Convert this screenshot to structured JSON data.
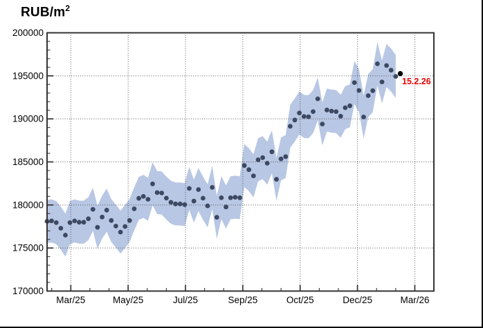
{
  "title": {
    "main": "RUB/m",
    "sup": "2"
  },
  "colors": {
    "marker": "#3d4962",
    "last_marker": "#000000",
    "band": "#b8c7e4",
    "annotation_red": "#ee0000",
    "frame": "#333333",
    "grid": "#555555",
    "text": "#000000",
    "background": "#ffffff"
  },
  "chart_data": {
    "type": "scatter",
    "title": "RUB/m2",
    "xlabel": "",
    "ylabel": "RUB/m2",
    "ylim": [
      170000,
      200000
    ],
    "y_ticks": [
      170000,
      175000,
      180000,
      185000,
      190000,
      195000,
      200000
    ],
    "y_tick_labels": [
      "170000",
      "175000",
      "180000",
      "185000",
      "190000",
      "195000",
      "200000"
    ],
    "y_minor_step": 1000,
    "x_tick_labels": [
      "Mar/25",
      "May/25",
      "Jul/25",
      "Sep/25",
      "Oct/25",
      "Dec/25",
      "Mar/26"
    ],
    "x_minor_per_major": 3,
    "grid": "dotted, both axes at major ticks",
    "legend": "none",
    "band": {
      "kind": "confidence",
      "halfwidth": 2500,
      "covers": "all points except final black point"
    },
    "series": [
      {
        "name": "price",
        "values": [
          178100,
          178150,
          177950,
          177300,
          176500,
          177950,
          178150,
          178000,
          178000,
          178400,
          179500,
          177400,
          178600,
          179400,
          178200,
          177550,
          176850,
          177500,
          178200,
          179550,
          180770,
          181000,
          180660,
          182450,
          181440,
          181390,
          180800,
          180310,
          180120,
          180120,
          180040,
          181920,
          180450,
          181790,
          180790,
          179900,
          182040,
          178570,
          180840,
          179770,
          180840,
          180900,
          180840,
          184580,
          184100,
          183380,
          185250,
          185500,
          184850,
          186180,
          182980,
          185350,
          185620,
          189140,
          189870,
          190690,
          190290,
          190250,
          190850,
          192330,
          189400,
          191030,
          190900,
          190850,
          190310,
          191300,
          191520,
          194220,
          193300,
          190220,
          192700,
          193280,
          196400,
          194300,
          196200,
          195660,
          194940,
          195260
        ]
      }
    ],
    "last_point": {
      "value": 195260,
      "marker_color": "black"
    },
    "annotation": {
      "text": "15.2.26",
      "color": "red",
      "position": "right of last point"
    }
  }
}
